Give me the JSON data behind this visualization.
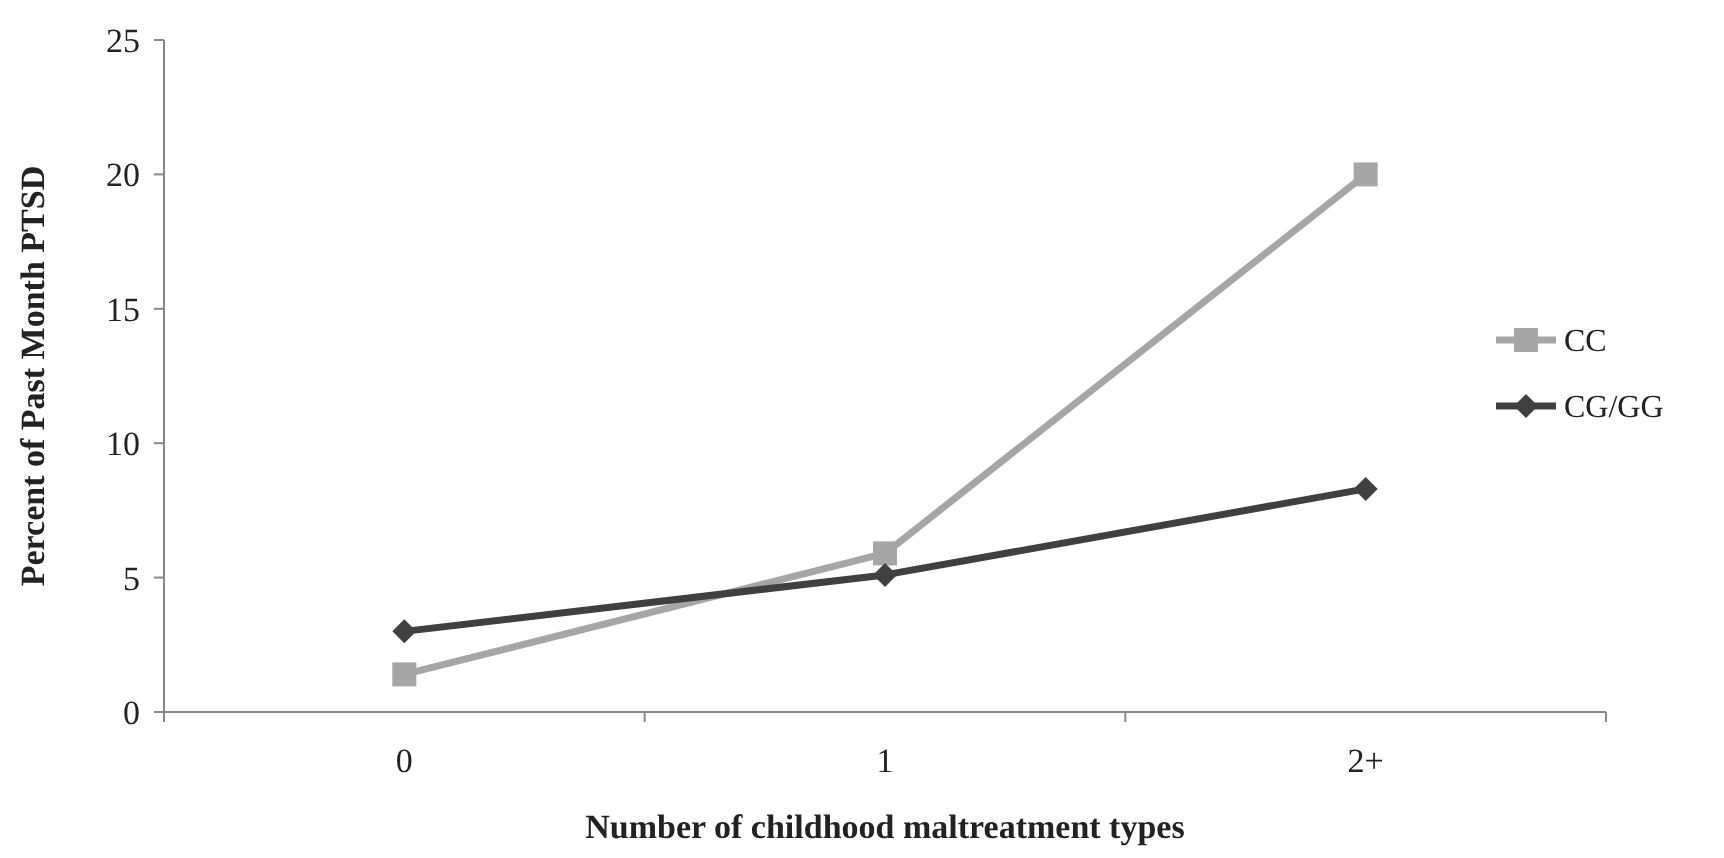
{
  "chart_data": {
    "type": "line",
    "xlabel": "Number of childhood maltreatment types",
    "ylabel": "Percent of Past Month PTSD",
    "categories": [
      "0",
      "1",
      "2+"
    ],
    "series": [
      {
        "name": "CC",
        "color": "#a6a6a6",
        "values": [
          1.4,
          5.9,
          20
        ],
        "marker": "square"
      },
      {
        "name": "CG/GG",
        "color": "#404040",
        "values": [
          3.0,
          5.1,
          8.3
        ],
        "marker": "diamond"
      }
    ],
    "ylim": [
      0,
      25
    ],
    "yticks": [
      0,
      5,
      10,
      15,
      20,
      25
    ],
    "grid": false,
    "legend": "right",
    "line_style": "solid"
  }
}
